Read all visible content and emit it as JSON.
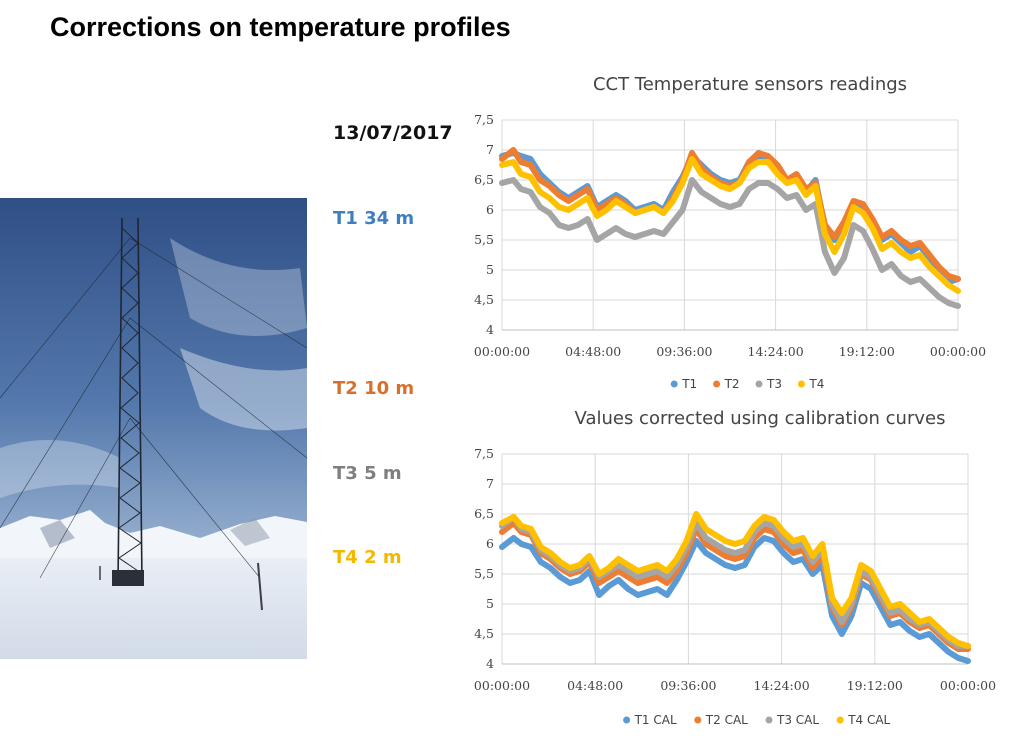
{
  "slide": {
    "title": "Corrections on temperature profiles",
    "date": "13/07/2017"
  },
  "sensors": [
    {
      "label": "T1 34 m",
      "color": "#3f7fbf"
    },
    {
      "label": "T2 10 m",
      "color": "#d8702c"
    },
    {
      "label": "T3  5 m",
      "color": "#7f7f7f"
    },
    {
      "label": "T4  2 m",
      "color": "#f3b800"
    }
  ],
  "colors": {
    "T1": "#5b9bd5",
    "T2": "#ed7d31",
    "T3": "#a5a5a5",
    "T4": "#ffc000",
    "grid": "#d9d9d9",
    "axis": "#bfbfbf"
  },
  "chart_data": [
    {
      "type": "line",
      "title": "CCT Temperature sensors readings",
      "xlabel": "",
      "ylabel": "",
      "x_ticks": [
        "00:00:00",
        "04:48:00",
        "09:36:00",
        "14:24:00",
        "19:12:00",
        "00:00:00"
      ],
      "y_ticks": [
        "4",
        "4,5",
        "5",
        "5,5",
        "6",
        "6,5",
        "7",
        "7,5"
      ],
      "ylim": [
        4,
        7.5
      ],
      "xlim_hours": [
        0,
        24
      ],
      "grid": true,
      "legend_position": "bottom",
      "series": [
        {
          "name": "T1",
          "color_key": "T1",
          "x_hours": [
            0,
            0.6,
            1,
            1.5,
            2,
            2.5,
            3,
            3.5,
            4,
            4.5,
            5,
            5.5,
            6,
            6.5,
            7,
            7.5,
            8,
            8.5,
            9,
            9.5,
            10,
            10.5,
            11,
            11.5,
            12,
            12.5,
            13,
            13.5,
            14,
            14.5,
            15,
            15.5,
            16,
            16.5,
            17,
            17.5,
            18,
            18.5,
            19,
            19.5,
            20,
            20.5,
            21,
            21.5,
            22,
            22.5,
            23,
            23.5,
            24
          ],
          "values": [
            6.9,
            6.95,
            6.9,
            6.85,
            6.6,
            6.45,
            6.3,
            6.2,
            6.3,
            6.4,
            6.05,
            6.15,
            6.25,
            6.15,
            6.0,
            6.05,
            6.1,
            6.0,
            6.3,
            6.55,
            6.9,
            6.75,
            6.6,
            6.5,
            6.45,
            6.5,
            6.8,
            6.9,
            6.85,
            6.7,
            6.5,
            6.55,
            6.3,
            6.5,
            5.7,
            5.5,
            5.75,
            6.1,
            6.05,
            5.8,
            5.5,
            5.6,
            5.45,
            5.3,
            5.4,
            5.2,
            5.0,
            4.8,
            4.85
          ]
        },
        {
          "name": "T2",
          "color_key": "T2",
          "x_hours": [
            0,
            0.6,
            1,
            1.5,
            2,
            2.5,
            3,
            3.5,
            4,
            4.5,
            5,
            5.5,
            6,
            6.5,
            7,
            7.5,
            8,
            8.5,
            9,
            9.5,
            10,
            10.5,
            11,
            11.5,
            12,
            12.5,
            13,
            13.5,
            14,
            14.5,
            15,
            15.5,
            16,
            16.5,
            17,
            17.5,
            18,
            18.5,
            19,
            19.5,
            20,
            20.5,
            21,
            21.5,
            22,
            22.5,
            23,
            23.5,
            24
          ],
          "values": [
            6.85,
            7.0,
            6.8,
            6.75,
            6.5,
            6.4,
            6.25,
            6.15,
            6.25,
            6.35,
            6.0,
            6.1,
            6.2,
            6.1,
            5.95,
            6.0,
            6.05,
            5.95,
            6.2,
            6.5,
            6.95,
            6.7,
            6.55,
            6.45,
            6.4,
            6.45,
            6.8,
            6.95,
            6.9,
            6.75,
            6.5,
            6.6,
            6.35,
            6.45,
            5.75,
            5.55,
            5.8,
            6.15,
            6.1,
            5.85,
            5.55,
            5.65,
            5.5,
            5.4,
            5.45,
            5.25,
            5.05,
            4.9,
            4.85
          ]
        },
        {
          "name": "T3",
          "color_key": "T3",
          "x_hours": [
            0,
            0.6,
            1,
            1.5,
            2,
            2.5,
            3,
            3.5,
            4,
            4.5,
            5,
            5.5,
            6,
            6.5,
            7,
            7.5,
            8,
            8.5,
            9,
            9.5,
            10,
            10.5,
            11,
            11.5,
            12,
            12.5,
            13,
            13.5,
            14,
            14.5,
            15,
            15.5,
            16,
            16.5,
            17,
            17.5,
            18,
            18.5,
            19,
            19.5,
            20,
            20.5,
            21,
            21.5,
            22,
            22.5,
            23,
            23.5,
            24
          ],
          "values": [
            6.45,
            6.5,
            6.35,
            6.3,
            6.05,
            5.95,
            5.75,
            5.7,
            5.75,
            5.85,
            5.5,
            5.6,
            5.7,
            5.6,
            5.55,
            5.6,
            5.65,
            5.6,
            5.8,
            6.0,
            6.5,
            6.3,
            6.2,
            6.1,
            6.05,
            6.1,
            6.35,
            6.45,
            6.45,
            6.35,
            6.2,
            6.25,
            6.0,
            6.1,
            5.3,
            4.95,
            5.2,
            5.75,
            5.65,
            5.35,
            5.0,
            5.1,
            4.9,
            4.8,
            4.85,
            4.7,
            4.55,
            4.45,
            4.4
          ]
        },
        {
          "name": "T4",
          "color_key": "T4",
          "x_hours": [
            0,
            0.6,
            1,
            1.5,
            2,
            2.5,
            3,
            3.5,
            4,
            4.5,
            5,
            5.5,
            6,
            6.5,
            7,
            7.5,
            8,
            8.5,
            9,
            9.5,
            10,
            10.5,
            11,
            11.5,
            12,
            12.5,
            13,
            13.5,
            14,
            14.5,
            15,
            15.5,
            16,
            16.5,
            17,
            17.5,
            18,
            18.5,
            19,
            19.5,
            20,
            20.5,
            21,
            21.5,
            22,
            22.5,
            23,
            23.5,
            24
          ],
          "values": [
            6.75,
            6.8,
            6.6,
            6.55,
            6.3,
            6.2,
            6.05,
            6.0,
            6.1,
            6.2,
            5.9,
            6.0,
            6.15,
            6.05,
            5.95,
            6.0,
            6.05,
            5.95,
            6.15,
            6.45,
            6.85,
            6.6,
            6.5,
            6.4,
            6.35,
            6.45,
            6.7,
            6.8,
            6.8,
            6.6,
            6.45,
            6.5,
            6.25,
            6.4,
            5.6,
            5.3,
            5.6,
            6.05,
            5.95,
            5.7,
            5.35,
            5.45,
            5.3,
            5.2,
            5.25,
            5.05,
            4.9,
            4.75,
            4.65
          ]
        }
      ]
    },
    {
      "type": "line",
      "title": "Values corrected using calibration curves",
      "xlabel": "",
      "ylabel": "",
      "x_ticks": [
        "00:00:00",
        "04:48:00",
        "09:36:00",
        "14:24:00",
        "19:12:00",
        "00:00:00"
      ],
      "y_ticks": [
        "4",
        "4,5",
        "5",
        "5,5",
        "6",
        "6,5",
        "7",
        "7,5"
      ],
      "ylim": [
        4,
        7.5
      ],
      "xlim_hours": [
        0,
        24
      ],
      "grid": true,
      "legend_position": "bottom",
      "series": [
        {
          "name": "T1 CAL",
          "color_key": "T1",
          "x_hours": [
            0,
            0.6,
            1,
            1.5,
            2,
            2.5,
            3,
            3.5,
            4,
            4.5,
            5,
            5.5,
            6,
            6.5,
            7,
            7.5,
            8,
            8.5,
            9,
            9.5,
            10,
            10.5,
            11,
            11.5,
            12,
            12.5,
            13,
            13.5,
            14,
            14.5,
            15,
            15.5,
            16,
            16.5,
            17,
            17.5,
            18,
            18.5,
            19,
            19.5,
            20,
            20.5,
            21,
            21.5,
            22,
            22.5,
            23,
            23.5,
            24
          ],
          "values": [
            5.95,
            6.1,
            6.0,
            5.95,
            5.7,
            5.6,
            5.45,
            5.35,
            5.4,
            5.55,
            5.15,
            5.3,
            5.4,
            5.25,
            5.15,
            5.2,
            5.25,
            5.15,
            5.4,
            5.7,
            6.05,
            5.85,
            5.75,
            5.65,
            5.6,
            5.65,
            5.95,
            6.1,
            6.05,
            5.85,
            5.7,
            5.75,
            5.5,
            5.65,
            4.8,
            4.5,
            4.8,
            5.35,
            5.25,
            4.95,
            4.65,
            4.7,
            4.55,
            4.45,
            4.5,
            4.35,
            4.2,
            4.1,
            4.05
          ]
        },
        {
          "name": "T2 CAL",
          "color_key": "T2",
          "x_hours": [
            0,
            0.6,
            1,
            1.5,
            2,
            2.5,
            3,
            3.5,
            4,
            4.5,
            5,
            5.5,
            6,
            6.5,
            7,
            7.5,
            8,
            8.5,
            9,
            9.5,
            10,
            10.5,
            11,
            11.5,
            12,
            12.5,
            13,
            13.5,
            14,
            14.5,
            15,
            15.5,
            16,
            16.5,
            17,
            17.5,
            18,
            18.5,
            19,
            19.5,
            20,
            20.5,
            21,
            21.5,
            22,
            22.5,
            23,
            23.5,
            24
          ],
          "values": [
            6.2,
            6.35,
            6.2,
            6.15,
            5.85,
            5.75,
            5.6,
            5.5,
            5.55,
            5.7,
            5.35,
            5.45,
            5.55,
            5.45,
            5.35,
            5.4,
            5.45,
            5.35,
            5.55,
            5.85,
            6.25,
            6.0,
            5.9,
            5.8,
            5.75,
            5.8,
            6.1,
            6.25,
            6.2,
            6.0,
            5.85,
            5.9,
            5.6,
            5.8,
            4.95,
            4.65,
            4.95,
            5.5,
            5.4,
            5.1,
            4.8,
            4.85,
            4.7,
            4.6,
            4.65,
            4.5,
            4.35,
            4.25,
            4.25
          ]
        },
        {
          "name": "T3 CAL",
          "color_key": "T3",
          "x_hours": [
            0,
            0.6,
            1,
            1.5,
            2,
            2.5,
            3,
            3.5,
            4,
            4.5,
            5,
            5.5,
            6,
            6.5,
            7,
            7.5,
            8,
            8.5,
            9,
            9.5,
            10,
            10.5,
            11,
            11.5,
            12,
            12.5,
            13,
            13.5,
            14,
            14.5,
            15,
            15.5,
            16,
            16.5,
            17,
            17.5,
            18,
            18.5,
            19,
            19.5,
            20,
            20.5,
            21,
            21.5,
            22,
            22.5,
            23,
            23.5,
            24
          ],
          "values": [
            6.3,
            6.45,
            6.25,
            6.2,
            5.9,
            5.8,
            5.65,
            5.55,
            5.6,
            5.75,
            5.45,
            5.55,
            5.65,
            5.55,
            5.45,
            5.5,
            5.55,
            5.45,
            5.65,
            5.95,
            6.35,
            6.1,
            6.0,
            5.9,
            5.85,
            5.9,
            6.2,
            6.35,
            6.3,
            6.1,
            5.95,
            6.0,
            5.7,
            5.9,
            5.0,
            4.7,
            5.0,
            5.55,
            5.45,
            5.15,
            4.85,
            4.9,
            4.75,
            4.65,
            4.7,
            4.55,
            4.4,
            4.3,
            4.3
          ]
        },
        {
          "name": "T4 CAL",
          "color_key": "T4",
          "x_hours": [
            0,
            0.6,
            1,
            1.5,
            2,
            2.5,
            3,
            3.5,
            4,
            4.5,
            5,
            5.5,
            6,
            6.5,
            7,
            7.5,
            8,
            8.5,
            9,
            9.5,
            10,
            10.5,
            11,
            11.5,
            12,
            12.5,
            13,
            13.5,
            14,
            14.5,
            15,
            15.5,
            16,
            16.5,
            17,
            17.5,
            18,
            18.5,
            19,
            19.5,
            20,
            20.5,
            21,
            21.5,
            22,
            22.5,
            23,
            23.5,
            24
          ],
          "values": [
            6.35,
            6.45,
            6.3,
            6.25,
            5.95,
            5.85,
            5.7,
            5.6,
            5.65,
            5.8,
            5.5,
            5.6,
            5.75,
            5.65,
            5.55,
            5.6,
            5.65,
            5.55,
            5.75,
            6.05,
            6.5,
            6.25,
            6.15,
            6.05,
            6.0,
            6.05,
            6.3,
            6.45,
            6.4,
            6.2,
            6.05,
            6.1,
            5.8,
            6.0,
            5.1,
            4.85,
            5.1,
            5.65,
            5.55,
            5.25,
            4.95,
            5.0,
            4.85,
            4.7,
            4.75,
            4.6,
            4.45,
            4.35,
            4.3
          ]
        }
      ]
    }
  ]
}
